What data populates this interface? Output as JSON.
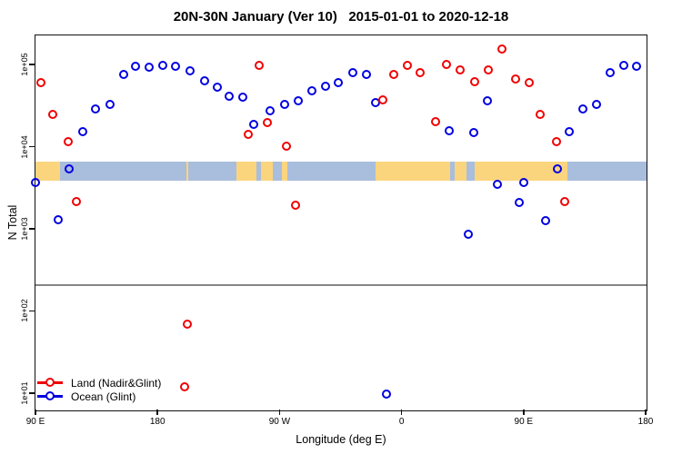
{
  "chart_data": {
    "type": "scatter",
    "title": "20N-30N January (Ver 10)   2015-01-01 to 2020-12-18",
    "xlabel": "Longitude (deg E)",
    "ylabel": "N Total",
    "grid": false,
    "legend_position": "bottom-left",
    "x_axis": {
      "range": [
        -270,
        180
      ],
      "ticks": [
        -270,
        -180,
        -90,
        0,
        90,
        180
      ],
      "tick_labels": [
        "90 E",
        "180",
        "90 W",
        "0",
        "90 E",
        "180"
      ]
    },
    "y_axis": {
      "scale": "log",
      "range": [
        6.3,
        227000
      ],
      "ticks": [
        100000,
        10000,
        1000,
        100,
        10
      ],
      "tick_labels": [
        "1e+05",
        "1e+04",
        "1e+03",
        "1e+02",
        "1e+01"
      ]
    },
    "threshold_line": {
      "value": 206,
      "color": "#858585"
    },
    "map_strip": {
      "n_top": 6600,
      "n_bottom": 3870,
      "ocean_color": "#a9bddc",
      "land_color": "#fbd57e",
      "land_segments_lon": [
        [
          -270,
          -252
        ],
        [
          -159,
          -157
        ],
        [
          -122,
          -107
        ],
        [
          -104,
          -95
        ],
        [
          -88,
          -84
        ],
        [
          -19,
          35.5
        ],
        [
          39,
          48
        ],
        [
          54,
          122
        ]
      ]
    },
    "series": [
      {
        "name": "Land (Nadir&Glint)",
        "color": "#f00000",
        "marker": "open-circle",
        "points": [
          [
            -266,
            61000
          ],
          [
            -257,
            24500
          ],
          [
            -246,
            11500
          ],
          [
            -240,
            2160
          ],
          [
            -160,
            12
          ],
          [
            -158,
            69
          ],
          [
            -113,
            14100
          ],
          [
            -105,
            98800
          ],
          [
            -99,
            19500
          ],
          [
            -85,
            10100
          ],
          [
            -78,
            1950
          ],
          [
            -14,
            36800
          ],
          [
            -6,
            76700
          ],
          [
            4,
            98800
          ],
          [
            14,
            80700
          ],
          [
            25,
            20000
          ],
          [
            33,
            101000
          ],
          [
            43,
            87000
          ],
          [
            54,
            62600
          ],
          [
            64,
            87000
          ],
          [
            74,
            155000
          ],
          [
            84,
            67600
          ],
          [
            94,
            61000
          ],
          [
            102,
            24500
          ],
          [
            114,
            11500
          ],
          [
            120,
            2160
          ]
        ]
      },
      {
        "name": "Ocean (Glint)",
        "color": "#0000e0",
        "marker": "open-circle",
        "points": [
          [
            -270,
            3700
          ],
          [
            -253,
            1300
          ],
          [
            -245,
            5370
          ],
          [
            -235,
            15100
          ],
          [
            -226,
            28600
          ],
          [
            -215,
            32400
          ],
          [
            -205,
            76700
          ],
          [
            -196,
            96200
          ],
          [
            -186,
            93400
          ],
          [
            -176,
            98800
          ],
          [
            -167,
            96200
          ],
          [
            -156,
            85100
          ],
          [
            -145,
            64200
          ],
          [
            -136,
            52500
          ],
          [
            -127,
            40700
          ],
          [
            -117,
            39800
          ],
          [
            -109,
            18600
          ],
          [
            -97,
            27200
          ],
          [
            -86,
            33100
          ],
          [
            -76,
            35900
          ],
          [
            -66,
            48600
          ],
          [
            -56,
            55000
          ],
          [
            -47,
            61000
          ],
          [
            -36,
            79400
          ],
          [
            -26,
            76700
          ],
          [
            -19,
            34700
          ],
          [
            -11,
            9.6
          ],
          [
            35,
            15800
          ],
          [
            49,
            850
          ],
          [
            53,
            14800
          ],
          [
            63,
            35900
          ],
          [
            71,
            3470
          ],
          [
            87,
            2090
          ],
          [
            90,
            3630
          ],
          [
            106,
            1260
          ],
          [
            115,
            5370
          ],
          [
            124,
            15100
          ],
          [
            134,
            28600
          ],
          [
            144,
            33100
          ],
          [
            154,
            79400
          ],
          [
            164,
            98800
          ],
          [
            173,
            96200
          ]
        ]
      }
    ],
    "legend": {
      "entries": [
        {
          "label": "Land (Nadir&Glint)",
          "color": "#f00000"
        },
        {
          "label": "Ocean (Glint)",
          "color": "#0000e0"
        }
      ]
    }
  }
}
